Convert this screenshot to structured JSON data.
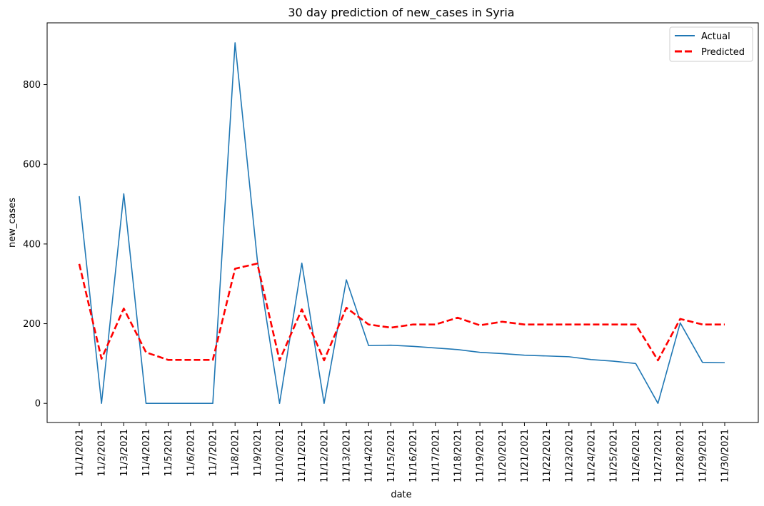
{
  "chart_data": {
    "type": "line",
    "title": "30 day prediction of new_cases in Syria",
    "xlabel": "date",
    "ylabel": "new_cases",
    "ylim": [
      -48,
      955
    ],
    "yticks": [
      0,
      200,
      400,
      600,
      800
    ],
    "grid": false,
    "legend_position": "top-right",
    "categories": [
      "11/1/2021",
      "11/2/2021",
      "11/3/2021",
      "11/4/2021",
      "11/5/2021",
      "11/6/2021",
      "11/7/2021",
      "11/8/2021",
      "11/9/2021",
      "11/10/2021",
      "11/11/2021",
      "11/12/2021",
      "11/13/2021",
      "11/14/2021",
      "11/15/2021",
      "11/16/2021",
      "11/17/2021",
      "11/18/2021",
      "11/19/2021",
      "11/20/2021",
      "11/21/2021",
      "11/22/2021",
      "11/23/2021",
      "11/24/2021",
      "11/25/2021",
      "11/26/2021",
      "11/27/2021",
      "11/28/2021",
      "11/29/2021",
      "11/30/2021"
    ],
    "series": [
      {
        "name": "Actual",
        "color": "#1f77b4",
        "style": "solid",
        "values": [
          520,
          0,
          526,
          0,
          0,
          0,
          0,
          905,
          360,
          0,
          352,
          0,
          310,
          145,
          146,
          143,
          139,
          135,
          128,
          125,
          121,
          119,
          117,
          110,
          106,
          100,
          0,
          202,
          103,
          102
        ]
      },
      {
        "name": "Predicted",
        "color": "#ff0000",
        "style": "dashed",
        "values": [
          350,
          112,
          238,
          128,
          109,
          109,
          109,
          338,
          351,
          108,
          236,
          108,
          240,
          198,
          190,
          198,
          198,
          215,
          196,
          205,
          198,
          198,
          198,
          198,
          198,
          198,
          108,
          212,
          198,
          198
        ]
      }
    ]
  }
}
